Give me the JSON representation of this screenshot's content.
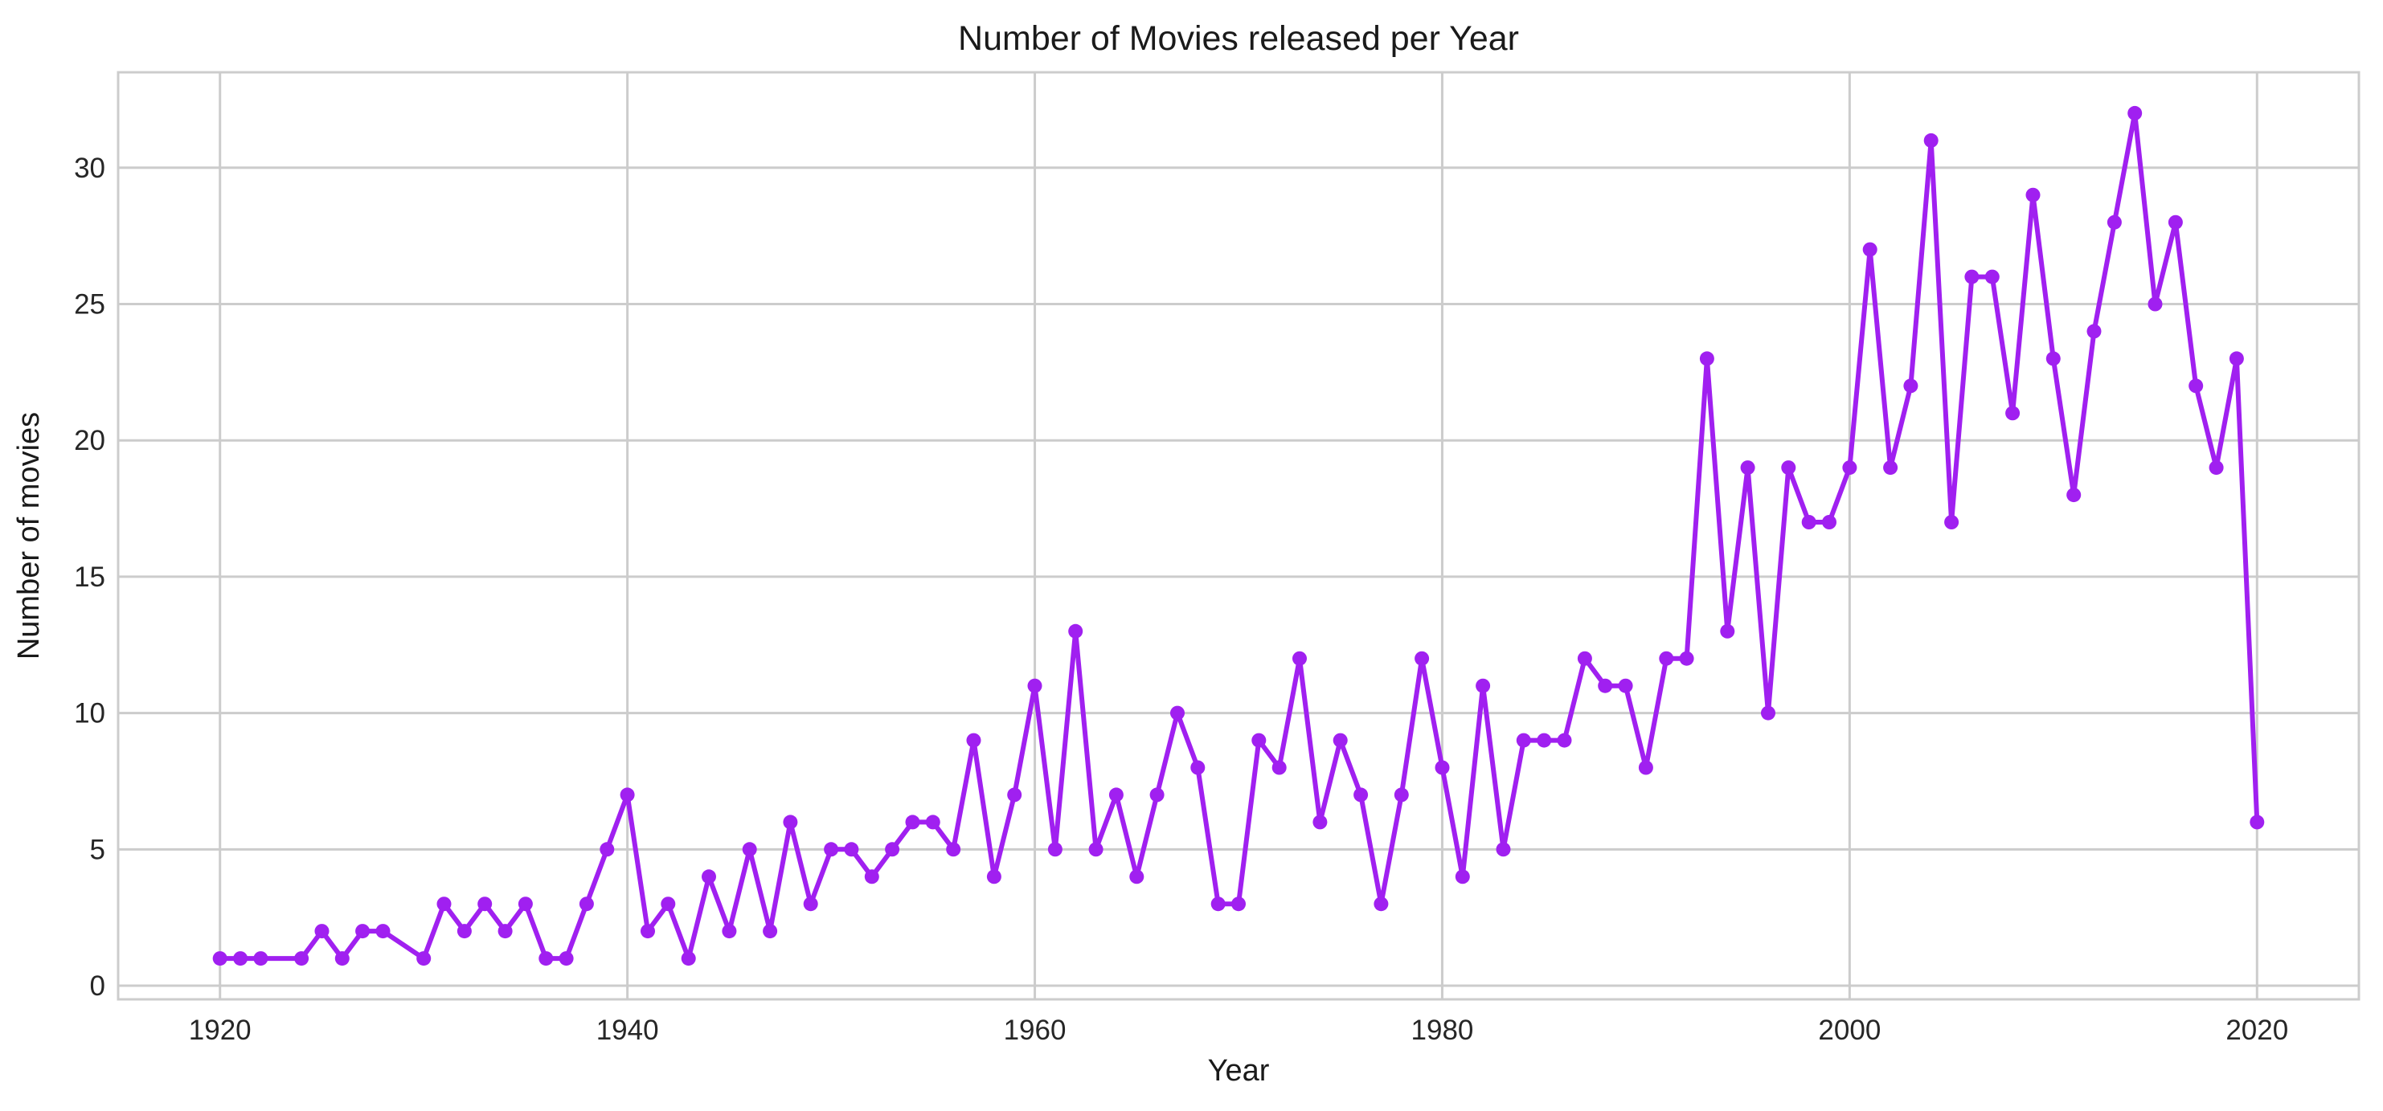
{
  "chart_data": {
    "type": "line",
    "title": "Number of Movies released per Year",
    "xlabel": "Year",
    "ylabel": "Number of movies",
    "xlim": [
      1915,
      2025
    ],
    "ylim": [
      -0.5,
      33.5
    ],
    "xticks": [
      1920,
      1940,
      1960,
      1980,
      2000,
      2020
    ],
    "yticks": [
      0,
      5,
      10,
      15,
      20,
      25,
      30
    ],
    "grid": true,
    "color": "#a020f0",
    "series": [
      {
        "x": [
          1920,
          1921,
          1922,
          1924,
          1925,
          1926,
          1927,
          1928,
          1930,
          1931,
          1932,
          1933,
          1934,
          1935,
          1936,
          1937,
          1938,
          1939,
          1940,
          1941,
          1942,
          1943,
          1944,
          1945,
          1946,
          1947,
          1948,
          1949,
          1950,
          1951,
          1952,
          1953,
          1954,
          1955,
          1956,
          1957,
          1958,
          1959,
          1960,
          1961,
          1962,
          1963,
          1964,
          1965,
          1966,
          1967,
          1968,
          1969,
          1970,
          1971,
          1972,
          1973,
          1974,
          1975,
          1976,
          1977,
          1978,
          1979,
          1980,
          1981,
          1982,
          1983,
          1984,
          1985,
          1986,
          1987,
          1988,
          1989,
          1990,
          1991,
          1992,
          1993,
          1994,
          1995,
          1996,
          1997,
          1998,
          1999,
          2000,
          2001,
          2002,
          2003,
          2004,
          2005,
          2006,
          2007,
          2008,
          2009,
          2010,
          2011,
          2012,
          2013,
          2014,
          2015,
          2016,
          2017,
          2018,
          2019,
          2020
        ],
        "y": [
          1,
          1,
          1,
          1,
          2,
          1,
          2,
          2,
          1,
          3,
          2,
          3,
          2,
          3,
          1,
          1,
          3,
          5,
          7,
          2,
          3,
          1,
          4,
          2,
          5,
          2,
          6,
          3,
          5,
          5,
          4,
          5,
          6,
          6,
          5,
          9,
          4,
          7,
          11,
          5,
          13,
          5,
          7,
          4,
          7,
          10,
          8,
          3,
          3,
          9,
          8,
          12,
          6,
          9,
          7,
          3,
          7,
          12,
          8,
          4,
          11,
          5,
          9,
          9,
          9,
          12,
          11,
          11,
          8,
          12,
          12,
          23,
          13,
          19,
          10,
          19,
          17,
          17,
          19,
          27,
          19,
          22,
          31,
          17,
          26,
          26,
          21,
          29,
          23,
          18,
          24,
          28,
          32,
          25,
          28,
          22,
          19,
          23,
          6
        ]
      }
    ]
  }
}
